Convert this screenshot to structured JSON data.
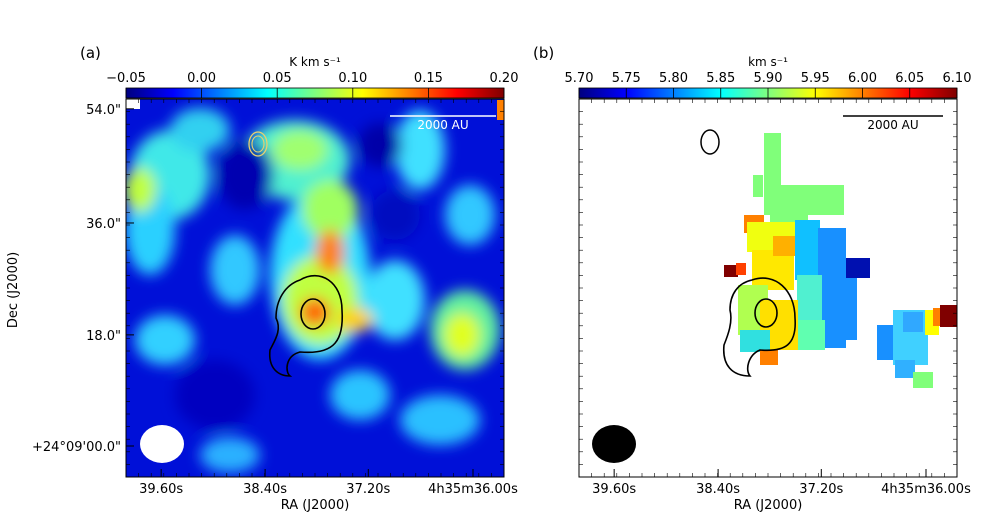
{
  "chart_data": [
    {
      "type": "heatmap",
      "panel_label": "(a)",
      "colorbar": {
        "label": "K km s⁻¹",
        "ticks": [
          "−0.05",
          "0.00",
          "0.05",
          "0.10",
          "0.15",
          "0.20"
        ],
        "range": [
          -0.05,
          0.2
        ],
        "colormap": "jet"
      },
      "xlabel": "RA (J2000)",
      "ylabel": "Dec (J2000)",
      "xticks": [
        "39.60s",
        "38.40s",
        "37.20s",
        "4h35m36.00s"
      ],
      "yticks": [
        "54.0\"",
        "36.0\"",
        "18.0\"",
        "+24°09'00.0\""
      ],
      "scalebar_label": "2000 AU",
      "beam_color": "#ffffff",
      "contour_color": "#000000",
      "peak_value": 0.16
    },
    {
      "type": "heatmap",
      "panel_label": "(b)",
      "colorbar": {
        "label": "km s⁻¹",
        "ticks": [
          "5.70",
          "5.75",
          "5.80",
          "5.85",
          "5.90",
          "5.95",
          "6.00",
          "6.05",
          "6.10"
        ],
        "range": [
          5.7,
          6.1
        ],
        "colormap": "jet"
      },
      "xlabel": "RA (J2000)",
      "xticks": [
        "39.60s",
        "38.40s",
        "37.20s",
        "4h35m36.00s"
      ],
      "scalebar_label": "2000 AU",
      "beam_color": "#000000",
      "contour_color": "#000000"
    }
  ]
}
